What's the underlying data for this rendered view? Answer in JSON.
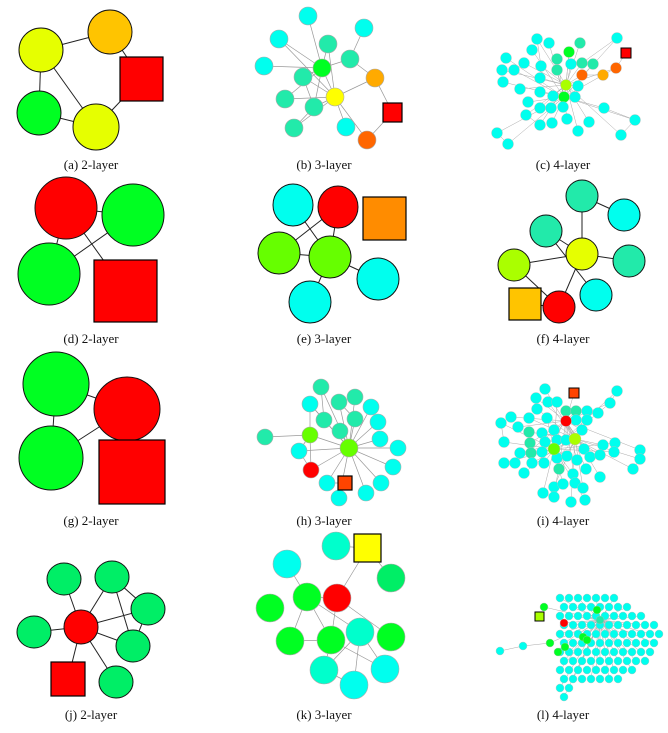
{
  "figure": {
    "captions": [
      "(a) 2-layer",
      "(b) 3-layer",
      "(c) 4-layer",
      "(d) 2-layer",
      "(e) 3-layer",
      "(f) 4-layer",
      "(g) 2-layer",
      "(h) 3-layer",
      "(i) 4-layer",
      "(j) 2-layer",
      "(k) 3-layer",
      "(l) 4-layer"
    ]
  },
  "palette": {
    "R": "#ff0000",
    "O": "#ff8c00",
    "A": "#ffc400",
    "Y": "#e6ff00",
    "YY": "#ffff00",
    "L": "#66ff00",
    "LG": "#aaff00",
    "G": "#00ff22",
    "GM": "#00ee66",
    "T": "#22eaaa",
    "TC": "#00ffcc",
    "C": "#00ffee",
    "OR": "#ff6600",
    "RR": "#ff4400",
    "OA": "#ffaa00"
  },
  "legend_note": ""
}
